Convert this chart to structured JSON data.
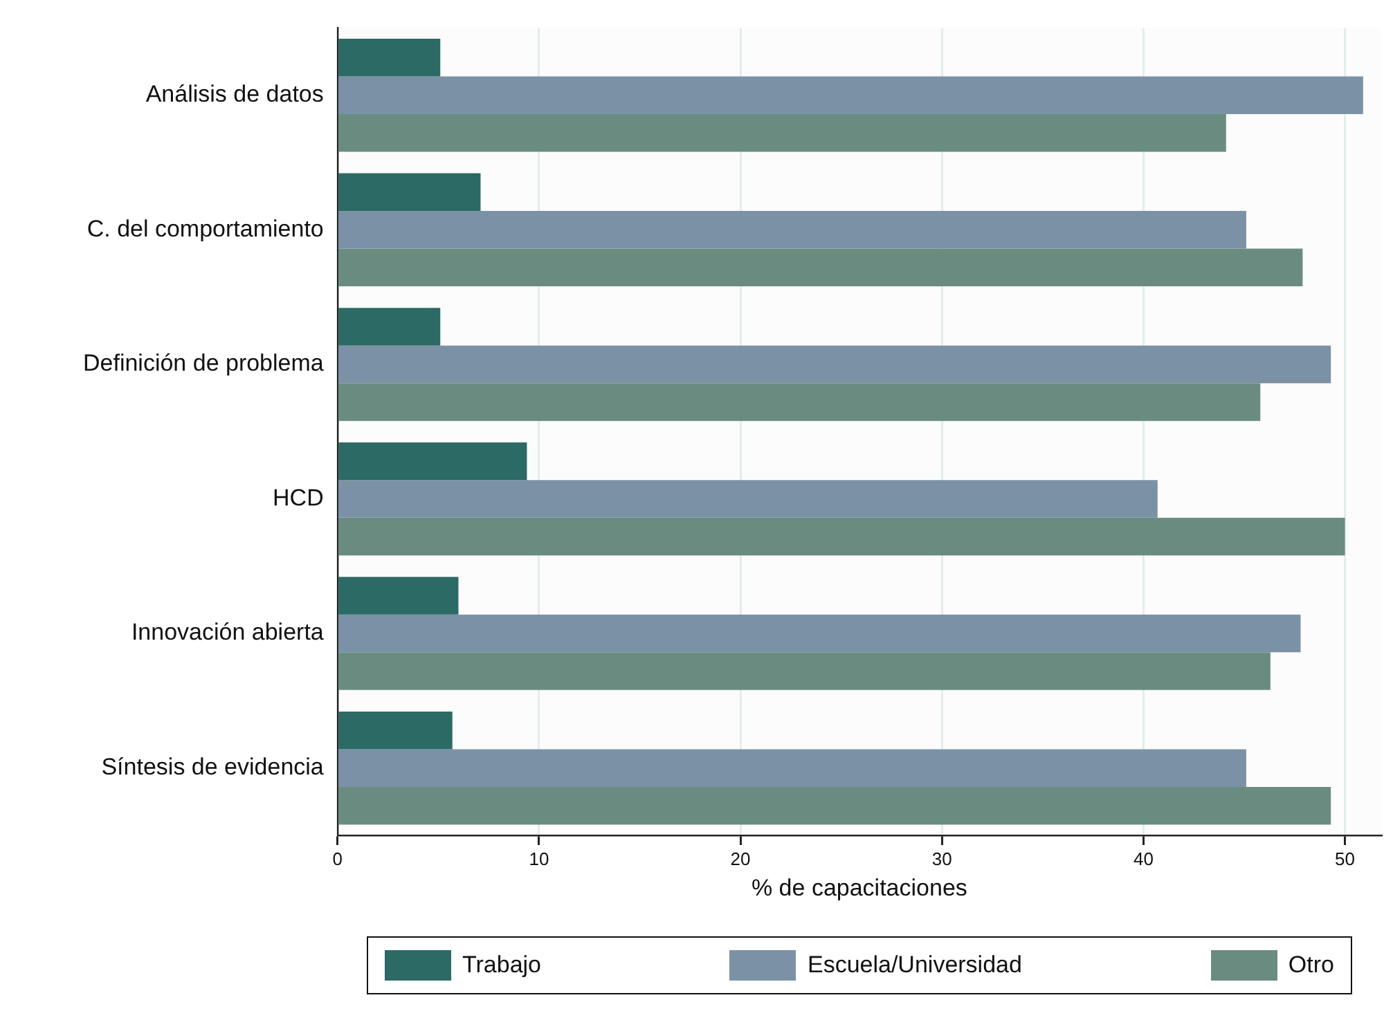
{
  "chart_data": {
    "type": "bar",
    "orientation": "horizontal",
    "xlabel": "% de capacitaciones",
    "categories": [
      "Análisis de datos",
      "C. del comportamiento",
      "Definición de problema",
      "HCD",
      "Innovación abierta",
      "Síntesis de evidencia"
    ],
    "series": [
      {
        "name": "Trabajo",
        "color": "#2c6a65",
        "values": [
          5.1,
          7.1,
          5.1,
          9.4,
          6.0,
          5.7
        ]
      },
      {
        "name": "Escuela/Universidad",
        "color": "#7b91a6",
        "values": [
          50.9,
          45.1,
          49.3,
          40.7,
          47.8,
          45.1
        ]
      },
      {
        "name": "Otro",
        "color": "#6a8c80",
        "values": [
          44.1,
          47.9,
          45.8,
          50.0,
          46.3,
          49.3
        ]
      }
    ],
    "xlim": [
      0,
      51.8
    ],
    "xticks": [
      0,
      10,
      20,
      30,
      40,
      50
    ],
    "grid": "x",
    "legend": "bottom"
  }
}
